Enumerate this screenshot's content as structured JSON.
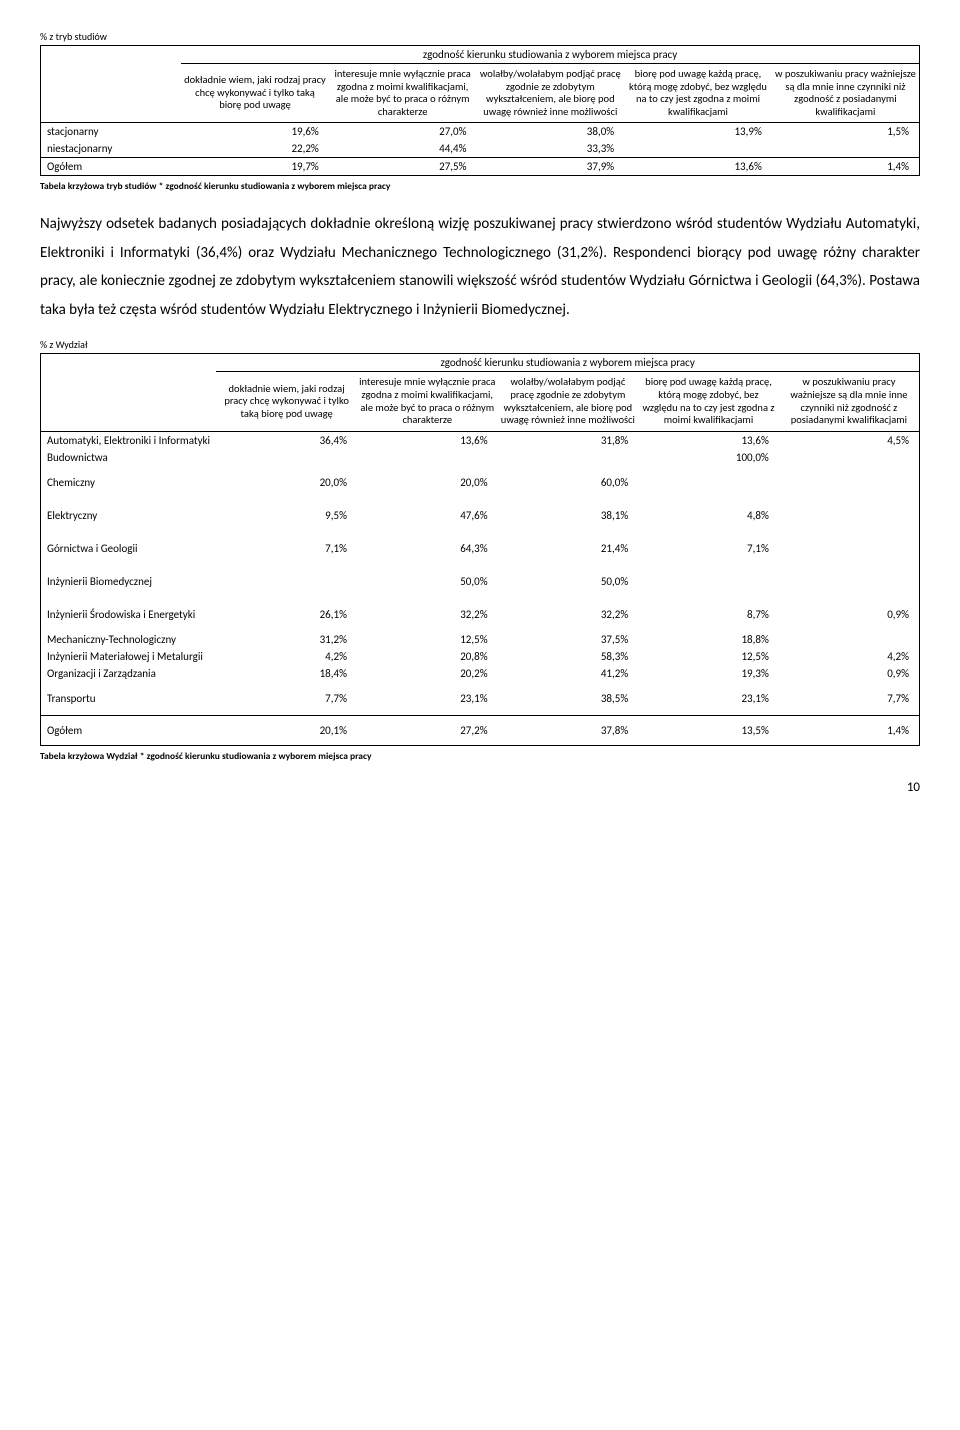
{
  "table1": {
    "topLabel": "% z tryb studiów",
    "spanHeader": "zgodność kierunku studiowania z wyborem miejsca pracy",
    "colHeaders": [
      "dokładnie wiem, jaki rodzaj pracy chcę wykonywać i tylko taką biorę pod uwagę",
      "interesuje mnie wyłącznie praca zgodna z moimi kwalifikacjami, ale może być to praca o różnym charakterze",
      "wolałby/wolałabym podjąć pracę zgodnie ze zdobytym wykształceniem, ale biorę pod uwagę również inne możliwości",
      "biorę pod uwagę każdą pracę, którą mogę zdobyć, bez względu na to czy jest zgodna z moimi kwalifikacjami",
      "w poszukiwaniu pracy ważniejsze są dla mnie inne czynniki niż zgodność z posiadanymi kwalifikacjami"
    ],
    "rows": [
      {
        "label": "stacjonarny",
        "values": [
          "19,6%",
          "27,0%",
          "38,0%",
          "13,9%",
          "1,5%"
        ]
      },
      {
        "label": "niestacjonarny",
        "values": [
          "22,2%",
          "44,4%",
          "33,3%",
          "",
          ""
        ]
      }
    ],
    "totalLabel": "Ogółem",
    "totalValues": [
      "19,7%",
      "27,5%",
      "37,9%",
      "13,6%",
      "1,4%"
    ],
    "caption": "Tabela krzyżowa tryb studiów * zgodność kierunku studiowania z wyborem miejsca pracy"
  },
  "bodyText": "Najwyższy odsetek badanych posiadających dokładnie określoną wizję poszukiwanej pracy stwierdzono wśród studentów Wydziału Automatyki, Elektroniki i Informatyki (36,4%) oraz Wydziału Mechanicznego Technologicznego (31,2%). Respondenci biorący pod uwagę różny charakter pracy, ale koniecznie zgodnej ze zdobytym wykształceniem stanowili większość wśród studentów Wydziału Górnictwa i Geologii (64,3%). Postawa taka była też częsta wśród studentów Wydziału Elektrycznego i Inżynierii Biomedycznej.",
  "table2": {
    "topLabel": "% z Wydział",
    "spanHeader": "zgodność kierunku studiowania z wyborem miejsca pracy",
    "colHeaders": [
      "dokładnie wiem, jaki rodzaj pracy chcę wykonywać i tylko taką biorę pod uwagę",
      "interesuje mnie wyłącznie praca zgodna z moimi kwalifikacjami, ale może być to praca o różnym charakterze",
      "wolałby/wolałabym podjąć pracę zgodnie ze zdobytym wykształceniem, ale biorę pod uwagę również inne możliwości",
      "biorę pod uwagę każdą pracę, którą mogę zdobyć, bez względu na to czy jest zgodna z moimi kwalifikacjami",
      "w poszukiwaniu pracy ważniejsze są dla mnie inne czynniki niż zgodność z posiadanymi kwalifikacjami"
    ],
    "rows": [
      {
        "label": "Automatyki, Elektroniki i Informatyki",
        "values": [
          "36,4%",
          "13,6%",
          "31,8%",
          "13,6%",
          "4,5%"
        ]
      },
      {
        "label": "Budownictwa",
        "values": [
          "",
          "",
          "",
          "100,0%",
          ""
        ]
      },
      {
        "label": "Chemiczny",
        "values": [
          "20,0%",
          "20,0%",
          "60,0%",
          "",
          ""
        ]
      },
      {
        "label": "Elektryczny",
        "values": [
          "9,5%",
          "47,6%",
          "38,1%",
          "4,8%",
          ""
        ]
      },
      {
        "label": "Górnictwa i Geologii",
        "values": [
          "7,1%",
          "64,3%",
          "21,4%",
          "7,1%",
          ""
        ]
      },
      {
        "label": "Inżynierii Biomedycznej",
        "values": [
          "",
          "50,0%",
          "50,0%",
          "",
          ""
        ]
      },
      {
        "label": "Inżynierii Środowiska i Energetyki",
        "values": [
          "26,1%",
          "32,2%",
          "32,2%",
          "8,7%",
          "0,9%"
        ]
      },
      {
        "label": "Mechaniczny-Technologiczny",
        "values": [
          "31,2%",
          "12,5%",
          "37,5%",
          "18,8%",
          ""
        ]
      },
      {
        "label": "Inżynierii Materiałowej i Metalurgii",
        "values": [
          "4,2%",
          "20,8%",
          "58,3%",
          "12,5%",
          "4,2%"
        ]
      },
      {
        "label": "Organizacji i Zarządzania",
        "values": [
          "18,4%",
          "20,2%",
          "41,2%",
          "19,3%",
          "0,9%"
        ]
      },
      {
        "label": "Transportu",
        "values": [
          "7,7%",
          "23,1%",
          "38,5%",
          "23,1%",
          "7,7%"
        ]
      }
    ],
    "totalLabel": "Ogółem",
    "totalValues": [
      "20,1%",
      "27,2%",
      "37,8%",
      "13,5%",
      "1,4%"
    ],
    "caption": "Tabela krzyżowa Wydział * zgodność kierunku studiowania z wyborem miejsca pracy"
  },
  "pageNumber": "10"
}
